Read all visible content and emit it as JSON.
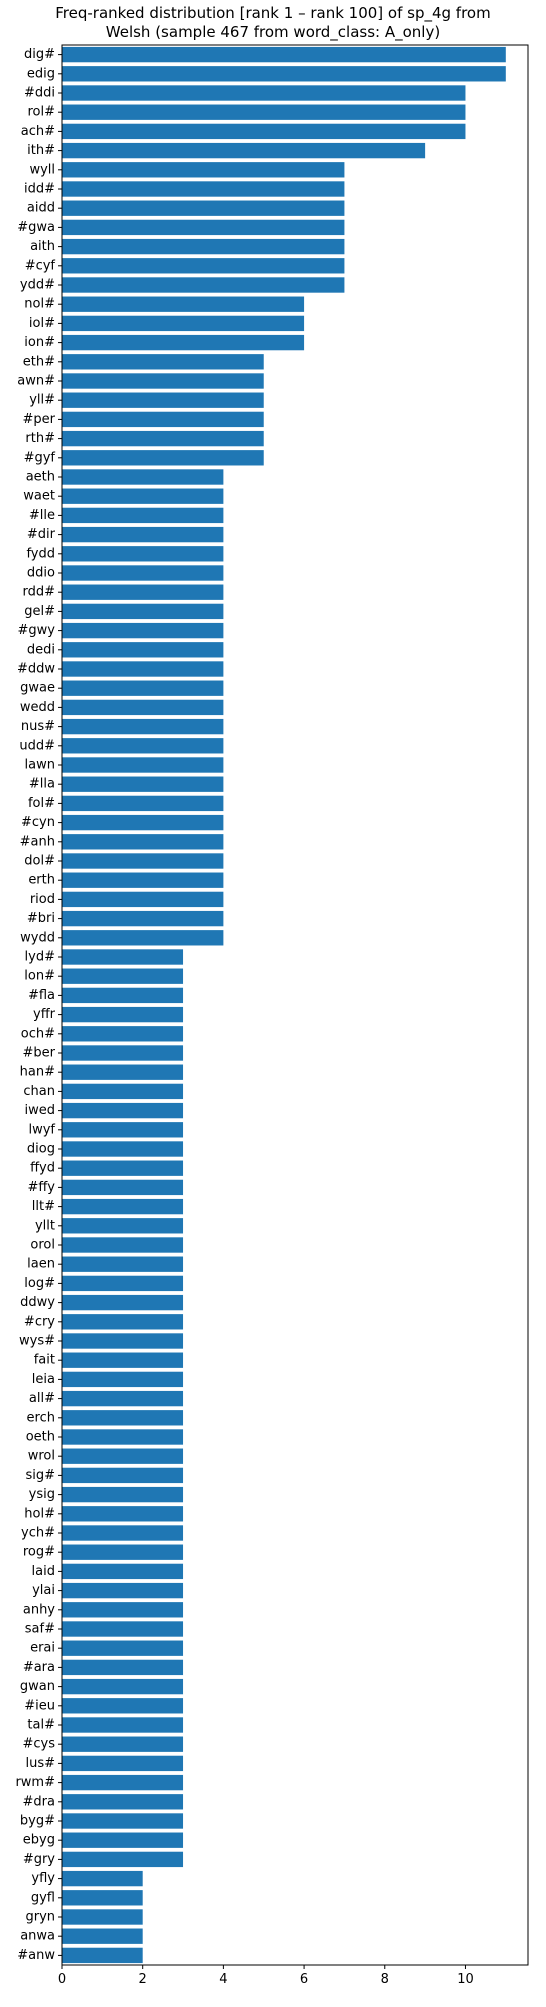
{
  "chart_data": {
    "type": "bar",
    "orientation": "horizontal",
    "title_lines": [
      "Freq-ranked distribution [rank 1 – rank 100] of sp_4g from",
      "Welsh (sample 467 from word_class: A_only)"
    ],
    "xlabel": "",
    "ylabel": "",
    "xlim": [
      0,
      11.55
    ],
    "xticks": [
      0,
      2,
      4,
      6,
      8,
      10
    ],
    "grid": false,
    "bar_color": "#1f77b4",
    "categories": [
      "dig#",
      "edig",
      "#ddi",
      "rol#",
      "ach#",
      "ith#",
      "wyll",
      "idd#",
      "aidd",
      "#gwa",
      "aith",
      "#cyf",
      "ydd#",
      "nol#",
      "iol#",
      "ion#",
      "eth#",
      "awn#",
      "yll#",
      "#per",
      "rth#",
      "#gyf",
      "aeth",
      "waet",
      "#lle",
      "#dir",
      "fydd",
      "ddio",
      "rdd#",
      "gel#",
      "#gwy",
      "dedi",
      "#ddw",
      "gwae",
      "wedd",
      "nus#",
      "udd#",
      "lawn",
      "#lla",
      "fol#",
      "#cyn",
      "#anh",
      "dol#",
      "erth",
      "riod",
      "#bri",
      "wydd",
      "lyd#",
      "lon#",
      "#fla",
      "yffr",
      "och#",
      "#ber",
      "han#",
      "chan",
      "iwed",
      "lwyf",
      "diog",
      "ffyd",
      "#ffy",
      "llt#",
      "yllt",
      "orol",
      "laen",
      "log#",
      "ddwy",
      "#cry",
      "wys#",
      "fait",
      "leia",
      "all#",
      "erch",
      "oeth",
      "wrol",
      "sig#",
      "ysig",
      "hol#",
      "ych#",
      "rog#",
      "laid",
      "ylai",
      "anhy",
      "saf#",
      "erai",
      "#ara",
      "gwan",
      "#ieu",
      "tal#",
      "#cys",
      "lus#",
      "rwm#",
      "#dra",
      "byg#",
      "ebyg",
      "#gry",
      "yfly",
      "gyfl",
      "gryn",
      "anwa",
      "#anw"
    ],
    "values": [
      11,
      11,
      10,
      10,
      10,
      9,
      7,
      7,
      7,
      7,
      7,
      7,
      7,
      6,
      6,
      6,
      5,
      5,
      5,
      5,
      5,
      5,
      4,
      4,
      4,
      4,
      4,
      4,
      4,
      4,
      4,
      4,
      4,
      4,
      4,
      4,
      4,
      4,
      4,
      4,
      4,
      4,
      4,
      4,
      4,
      4,
      4,
      3,
      3,
      3,
      3,
      3,
      3,
      3,
      3,
      3,
      3,
      3,
      3,
      3,
      3,
      3,
      3,
      3,
      3,
      3,
      3,
      3,
      3,
      3,
      3,
      3,
      3,
      3,
      3,
      3,
      3,
      3,
      3,
      3,
      3,
      3,
      3,
      3,
      3,
      3,
      3,
      3,
      3,
      3,
      3,
      3,
      3,
      3,
      3,
      2,
      2,
      2,
      2,
      2
    ]
  }
}
